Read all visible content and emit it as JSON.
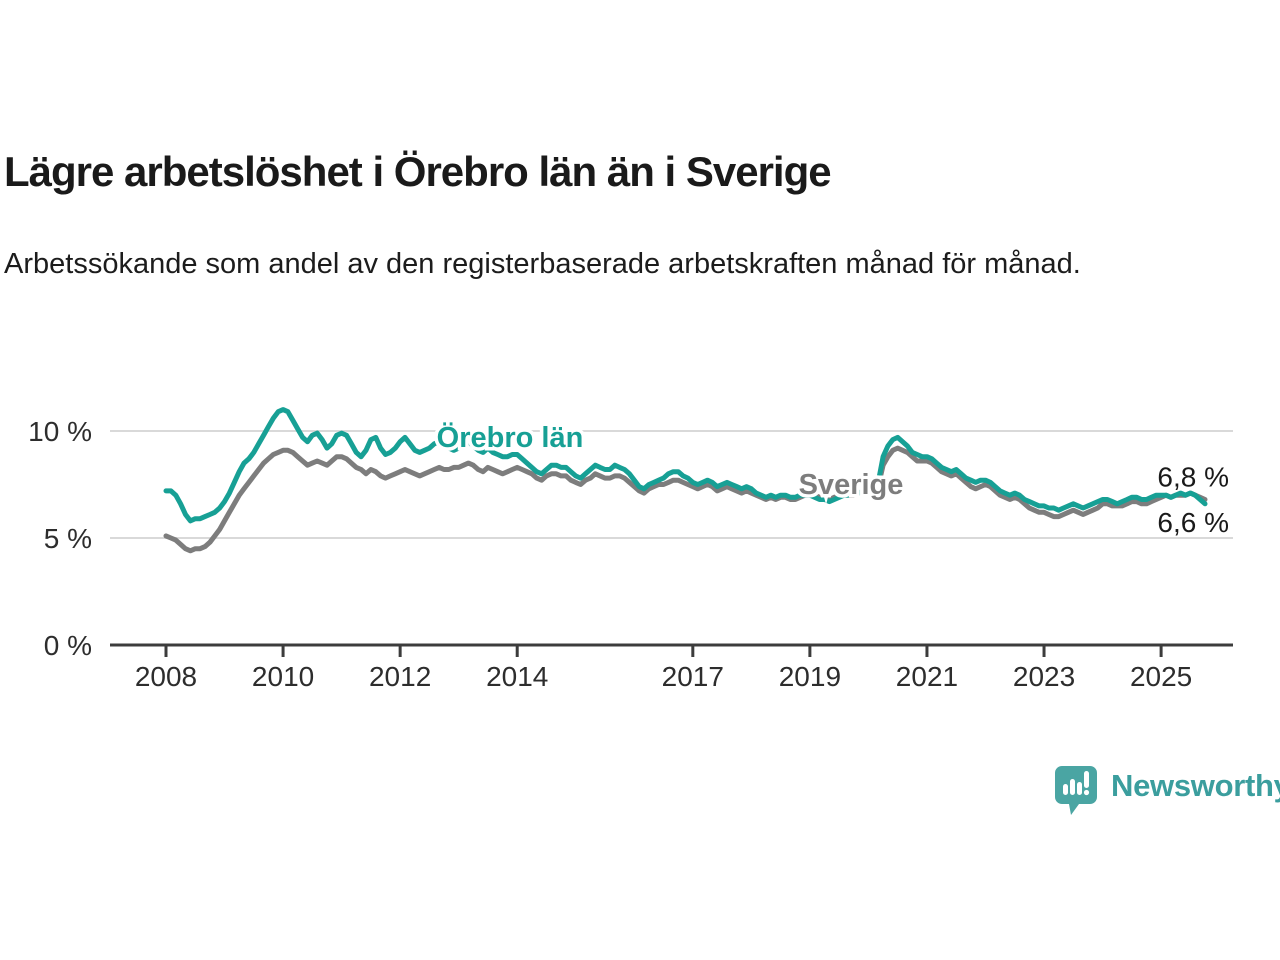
{
  "header": {
    "title": "Lägre arbetslöshet i Örebro län än i Sverige",
    "subtitle": "Arbetssökande som andel av den registerbaserade arbetskraften månad för månad."
  },
  "footer": {
    "brand": "Newsworthy",
    "brand_color": "#3b9e9e",
    "logo_bubble_color": "#4aa5a3"
  },
  "chart_data": {
    "type": "line",
    "title": "Lägre arbetslöshet i Örebro län än i Sverige",
    "subtitle": "Arbetssökande som andel av den registerbaserade arbetskraften månad för månad.",
    "x_unit": "month",
    "x_range": [
      "2008-01",
      "2025-10"
    ],
    "x_start_year": 2008,
    "x_tick_labels": [
      "2008",
      "2010",
      "2012",
      "2014",
      "2017",
      "2019",
      "2021",
      "2023",
      "2025"
    ],
    "y_tick_values": [
      0,
      5,
      10
    ],
    "y_tick_labels": [
      "0 %",
      "5 %",
      "10 %"
    ],
    "ylim": [
      0,
      11.9
    ],
    "grid": true,
    "legend_position": "inline-labels",
    "axis_color": "#3c3c3c",
    "grid_color": "#d9d9d9",
    "tick_label_color": "#2d2d2d",
    "end_label_color": "#1a1a1a",
    "series": [
      {
        "name": "Sverige",
        "color": "#7d7d7d",
        "end_label": "6,8 %",
        "values": [
          5.1,
          5.0,
          4.9,
          4.7,
          4.5,
          4.4,
          4.5,
          4.5,
          4.6,
          4.8,
          5.1,
          5.4,
          5.8,
          6.2,
          6.6,
          7.0,
          7.3,
          7.6,
          7.9,
          8.2,
          8.5,
          8.7,
          8.9,
          9.0,
          9.1,
          9.1,
          9.0,
          8.8,
          8.6,
          8.4,
          8.5,
          8.6,
          8.5,
          8.4,
          8.6,
          8.8,
          8.8,
          8.7,
          8.5,
          8.3,
          8.2,
          8.0,
          8.2,
          8.1,
          7.9,
          7.8,
          7.9,
          8.0,
          8.1,
          8.2,
          8.1,
          8.0,
          7.9,
          8.0,
          8.1,
          8.2,
          8.3,
          8.2,
          8.2,
          8.3,
          8.3,
          8.4,
          8.5,
          8.4,
          8.2,
          8.1,
          8.3,
          8.2,
          8.1,
          8.0,
          8.1,
          8.2,
          8.3,
          8.2,
          8.1,
          8.0,
          7.8,
          7.7,
          7.9,
          8.0,
          8.0,
          7.9,
          7.9,
          7.7,
          7.6,
          7.5,
          7.7,
          7.8,
          8.0,
          7.9,
          7.8,
          7.8,
          7.9,
          7.9,
          7.8,
          7.6,
          7.4,
          7.2,
          7.1,
          7.3,
          7.4,
          7.5,
          7.5,
          7.6,
          7.7,
          7.7,
          7.6,
          7.5,
          7.4,
          7.3,
          7.4,
          7.5,
          7.4,
          7.2,
          7.3,
          7.4,
          7.3,
          7.2,
          7.1,
          7.2,
          7.1,
          7.0,
          6.9,
          6.8,
          6.9,
          6.8,
          6.9,
          6.9,
          6.8,
          6.8,
          6.9,
          7.0,
          7.0,
          7.0,
          6.9,
          6.9,
          6.8,
          6.9,
          7.0,
          7.1,
          7.0,
          7.0,
          7.1,
          7.2,
          7.2,
          7.1,
          7.4,
          8.4,
          8.8,
          9.1,
          9.2,
          9.1,
          9.0,
          8.8,
          8.6,
          8.6,
          8.6,
          8.5,
          8.3,
          8.1,
          8.0,
          7.9,
          8.0,
          7.8,
          7.6,
          7.4,
          7.3,
          7.4,
          7.5,
          7.4,
          7.2,
          7.0,
          6.9,
          6.8,
          6.9,
          6.8,
          6.6,
          6.4,
          6.3,
          6.2,
          6.2,
          6.1,
          6.0,
          6.0,
          6.1,
          6.2,
          6.3,
          6.2,
          6.1,
          6.2,
          6.3,
          6.4,
          6.6,
          6.6,
          6.5,
          6.5,
          6.5,
          6.6,
          6.7,
          6.7,
          6.6,
          6.6,
          6.7,
          6.8,
          6.9,
          7.0,
          6.9,
          7.0,
          7.0,
          7.0,
          7.1,
          7.0,
          6.9,
          6.8
        ]
      },
      {
        "name": "Örebro län",
        "color": "#17a095",
        "end_label": "6,6 %",
        "values": [
          7.2,
          7.2,
          7.0,
          6.6,
          6.1,
          5.8,
          5.9,
          5.9,
          6.0,
          6.1,
          6.2,
          6.4,
          6.7,
          7.1,
          7.6,
          8.1,
          8.5,
          8.7,
          9.0,
          9.4,
          9.8,
          10.2,
          10.6,
          10.9,
          11.0,
          10.9,
          10.5,
          10.1,
          9.7,
          9.5,
          9.8,
          9.9,
          9.6,
          9.2,
          9.4,
          9.8,
          9.9,
          9.8,
          9.4,
          9.0,
          8.8,
          9.1,
          9.6,
          9.7,
          9.2,
          8.9,
          9.0,
          9.2,
          9.5,
          9.7,
          9.4,
          9.1,
          9.0,
          9.1,
          9.2,
          9.4,
          9.5,
          9.3,
          9.2,
          9.1,
          9.2,
          9.4,
          9.5,
          9.3,
          9.1,
          9.0,
          9.2,
          9.0,
          8.9,
          8.8,
          8.8,
          8.9,
          8.9,
          8.7,
          8.5,
          8.3,
          8.1,
          8.0,
          8.2,
          8.4,
          8.4,
          8.3,
          8.3,
          8.1,
          7.9,
          7.8,
          8.0,
          8.2,
          8.4,
          8.3,
          8.2,
          8.2,
          8.4,
          8.3,
          8.2,
          8.0,
          7.7,
          7.4,
          7.3,
          7.5,
          7.6,
          7.7,
          7.8,
          8.0,
          8.1,
          8.1,
          7.9,
          7.8,
          7.6,
          7.5,
          7.6,
          7.7,
          7.6,
          7.4,
          7.5,
          7.6,
          7.5,
          7.4,
          7.3,
          7.4,
          7.3,
          7.1,
          7.0,
          6.9,
          7.0,
          6.9,
          7.0,
          7.0,
          6.9,
          6.9,
          7.0,
          7.0,
          7.0,
          6.9,
          6.8,
          6.8,
          6.7,
          6.8,
          6.9,
          7.0,
          7.0,
          7.1,
          7.1,
          7.2,
          7.2,
          7.2,
          7.6,
          8.8,
          9.3,
          9.6,
          9.7,
          9.5,
          9.3,
          9.0,
          8.9,
          8.8,
          8.8,
          8.7,
          8.5,
          8.3,
          8.2,
          8.1,
          8.2,
          8.0,
          7.8,
          7.7,
          7.6,
          7.7,
          7.7,
          7.6,
          7.4,
          7.2,
          7.1,
          7.0,
          7.1,
          7.0,
          6.8,
          6.7,
          6.6,
          6.5,
          6.5,
          6.4,
          6.4,
          6.3,
          6.4,
          6.5,
          6.6,
          6.5,
          6.4,
          6.5,
          6.6,
          6.7,
          6.8,
          6.8,
          6.7,
          6.6,
          6.7,
          6.8,
          6.9,
          6.9,
          6.8,
          6.8,
          6.9,
          7.0,
          7.0,
          7.0,
          6.9,
          7.0,
          7.1,
          7.0,
          7.1,
          7.0,
          6.8,
          6.6
        ]
      }
    ]
  }
}
